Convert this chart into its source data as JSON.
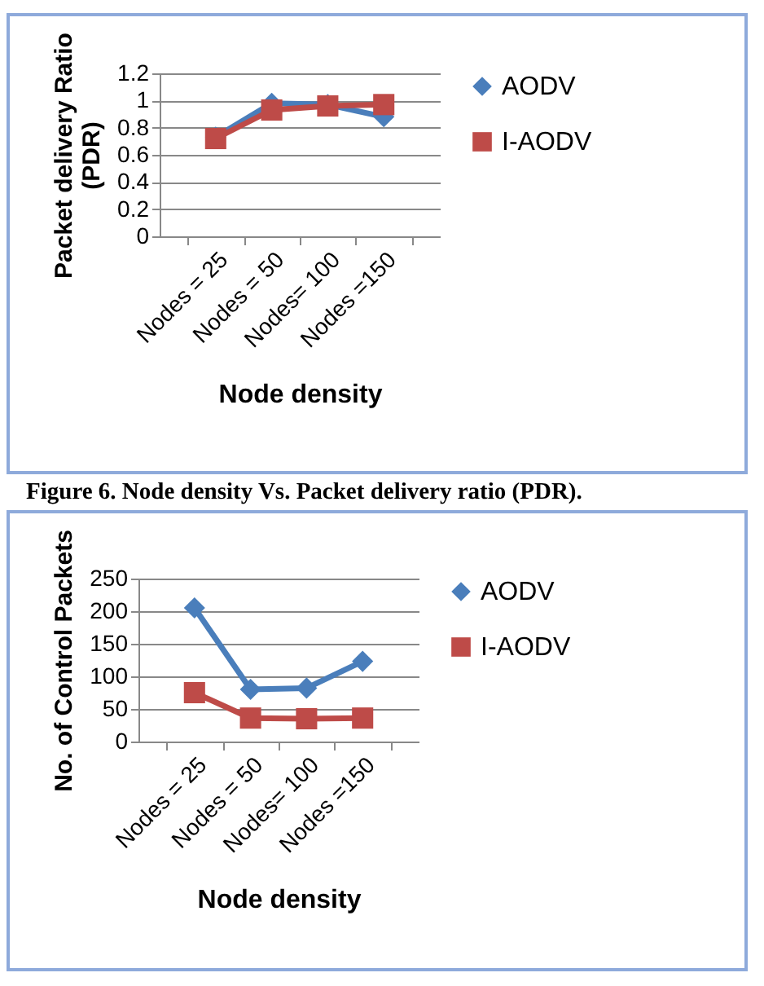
{
  "chart_data": [
    {
      "type": "line",
      "xlabel": "Node density",
      "ylabel": "Packet delivery Ratio (PDR)",
      "categories": [
        "Nodes = 25",
        "Nodes = 50",
        "Nodes= 100",
        "Nodes =150"
      ],
      "series": [
        {
          "name": "AODV",
          "color": "#4a7ebb",
          "marker": "diamond",
          "values": [
            0.73,
            0.98,
            0.97,
            0.88
          ]
        },
        {
          "name": "I-AODV",
          "color": "#be4b48",
          "marker": "square",
          "values": [
            0.72,
            0.93,
            0.96,
            0.97
          ]
        }
      ],
      "ylim": [
        0,
        1.2
      ],
      "yticks": [
        0,
        0.2,
        0.4,
        0.6,
        0.8,
        1,
        1.2
      ],
      "grid": "y",
      "legend": "right",
      "annotations": [
        "Figure 6. Node density Vs. Packet delivery ratio (PDR)."
      ]
    },
    {
      "type": "line",
      "xlabel": "Node density",
      "ylabel": "No. of Control Packets",
      "categories": [
        "Nodes = 25",
        "Nodes = 50",
        "Nodes= 100",
        "Nodes =150"
      ],
      "series": [
        {
          "name": "AODV",
          "color": "#4a7ebb",
          "marker": "diamond",
          "values": [
            205,
            80,
            82,
            123
          ]
        },
        {
          "name": "I-AODV",
          "color": "#be4b48",
          "marker": "square",
          "values": [
            75,
            36,
            35,
            36
          ]
        }
      ],
      "ylim": [
        0,
        250
      ],
      "yticks": [
        0,
        50,
        100,
        150,
        200,
        250
      ],
      "grid": "y",
      "legend": "right"
    }
  ]
}
